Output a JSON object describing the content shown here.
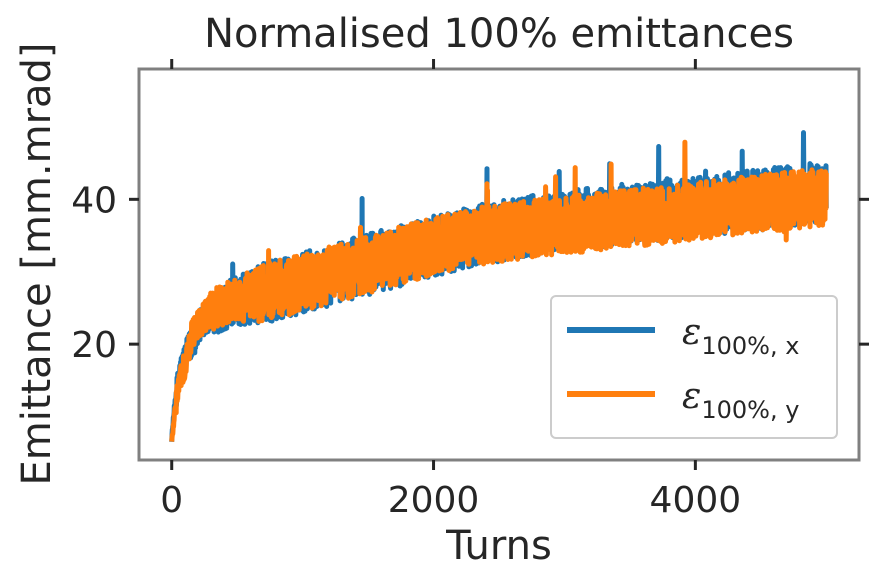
{
  "chart_data": {
    "type": "line",
    "title": "Normalised 100% emittances",
    "xlabel": "Turns",
    "ylabel": "Emittance [mm.mrad]",
    "xlim": [
      -250,
      5250
    ],
    "ylim": [
      4,
      58
    ],
    "xticks": [
      0,
      2000,
      4000
    ],
    "yticks": [
      20,
      40
    ],
    "grid": false,
    "legend_position": "lower right",
    "series": [
      {
        "name": "x",
        "legend_label": "ε100%, x",
        "color": "#1f77b4",
        "x": [
          0,
          25,
          60,
          100,
          150,
          200,
          300,
          400,
          500,
          600,
          700,
          800,
          900,
          1000,
          1100,
          1200,
          1300,
          1400,
          1500,
          1600,
          1700,
          1800,
          1900,
          2000,
          2100,
          2200,
          2300,
          2400,
          2500,
          2600,
          2700,
          2800,
          2900,
          3000,
          3100,
          3200,
          3300,
          3400,
          3500,
          3600,
          3700,
          3800,
          3900,
          4000,
          4100,
          4200,
          4300,
          4400,
          4500,
          4600,
          4700,
          4800,
          4900,
          5000
        ],
        "y": [
          7,
          12,
          16,
          18,
          20,
          22,
          24,
          25,
          26,
          26.5,
          27,
          27.5,
          28,
          28.5,
          29,
          29.5,
          30,
          30.5,
          31,
          31.5,
          32,
          32.5,
          33,
          33.5,
          34,
          34.5,
          35,
          35.3,
          35.6,
          36,
          36.3,
          36.5,
          36.8,
          37,
          37.2,
          37.4,
          37.6,
          37.8,
          38,
          38.2,
          38.4,
          38.6,
          38.8,
          39,
          39.2,
          39.4,
          39.6,
          39.8,
          40,
          40.2,
          40.4,
          40.6,
          40.8,
          41
        ]
      },
      {
        "name": "y",
        "legend_label": "ε100%, y",
        "color": "#ff7f0e",
        "x": [
          0,
          25,
          60,
          100,
          150,
          200,
          300,
          400,
          500,
          600,
          700,
          800,
          900,
          1000,
          1100,
          1200,
          1300,
          1400,
          1500,
          1600,
          1700,
          1800,
          1900,
          2000,
          2100,
          2200,
          2300,
          2400,
          2500,
          2600,
          2700,
          2800,
          2900,
          3000,
          3100,
          3200,
          3300,
          3400,
          3500,
          3600,
          3700,
          3800,
          3900,
          4000,
          4100,
          4200,
          4300,
          4400,
          4500,
          4600,
          4700,
          4800,
          4900,
          5000
        ],
        "y": [
          6.5,
          11,
          15,
          17,
          21,
          23,
          24.5,
          25.5,
          26,
          26.5,
          27,
          27.5,
          28,
          28.5,
          29,
          29.5,
          30,
          30.5,
          31,
          31.5,
          32,
          32.5,
          33,
          33.5,
          34,
          34.5,
          34.8,
          35,
          35.3,
          35.6,
          35.8,
          36,
          36.2,
          36.4,
          36.6,
          36.8,
          37,
          37.2,
          37.4,
          37.6,
          37.8,
          38,
          38.2,
          38.4,
          38.6,
          38.8,
          39,
          39.2,
          39.4,
          39.6,
          39.8,
          40,
          40.2,
          40.4
        ]
      }
    ]
  }
}
